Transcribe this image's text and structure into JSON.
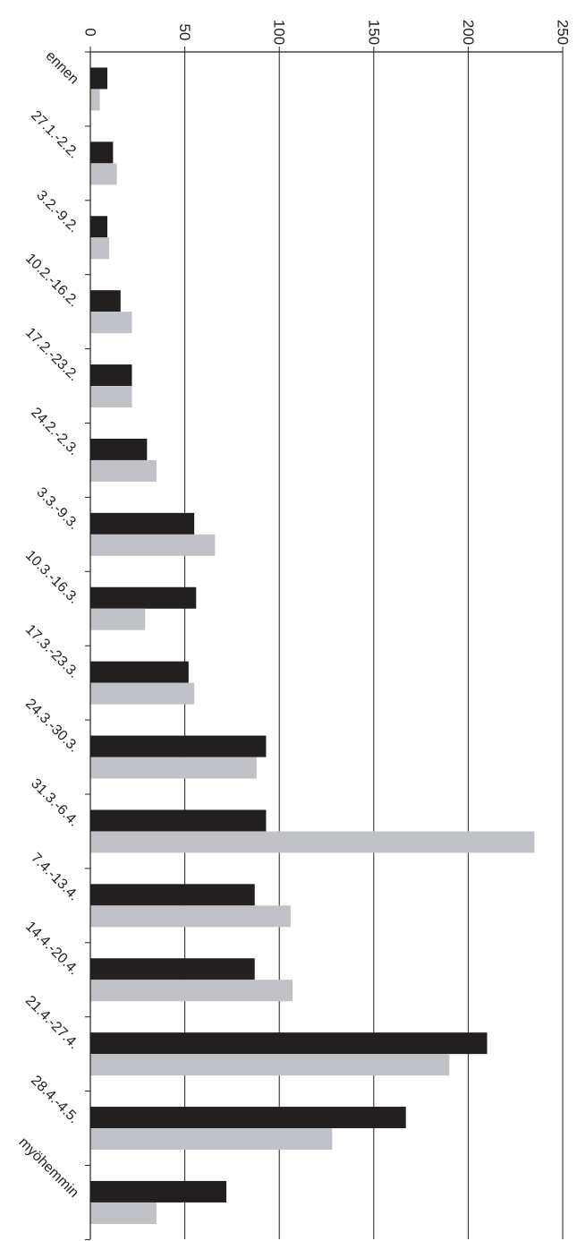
{
  "chart_data": {
    "type": "bar",
    "orientation": "horizontal",
    "categories": [
      "ennen",
      "27.1.-2.2.",
      "3.2.-9.2.",
      "10.2.-16.2.",
      "17.2.-23.2.",
      "24.2.-2.3.",
      "3.3.-9.3.",
      "10.3.-16.3.",
      "17.3.-23.3.",
      "24.3.-30.3.",
      "31.3.-6.4.",
      "7.4.-13.4.",
      "14.4.-20.4.",
      "21.4.-27.4.",
      "28.4.-4.5.",
      "myöhemmin"
    ],
    "series": [
      {
        "values": [
          9,
          12,
          9,
          16,
          22,
          30,
          55,
          56,
          52,
          93,
          93,
          87,
          87,
          210,
          167,
          72
        ]
      },
      {
        "values": [
          5,
          14,
          10,
          22,
          22,
          35,
          66,
          29,
          55,
          88,
          235,
          106,
          107,
          190,
          128,
          35
        ]
      }
    ],
    "xlim": [
      0,
      250
    ],
    "ticks": [
      "0",
      "50",
      "100",
      "150",
      "200",
      "250"
    ],
    "tick_values": [
      0,
      50,
      100,
      150,
      200,
      250
    ],
    "gridlines": true,
    "colors": [
      "#231f20",
      "#c0c2c7"
    ],
    "title": "",
    "xlabel": "",
    "ylabel": ""
  }
}
